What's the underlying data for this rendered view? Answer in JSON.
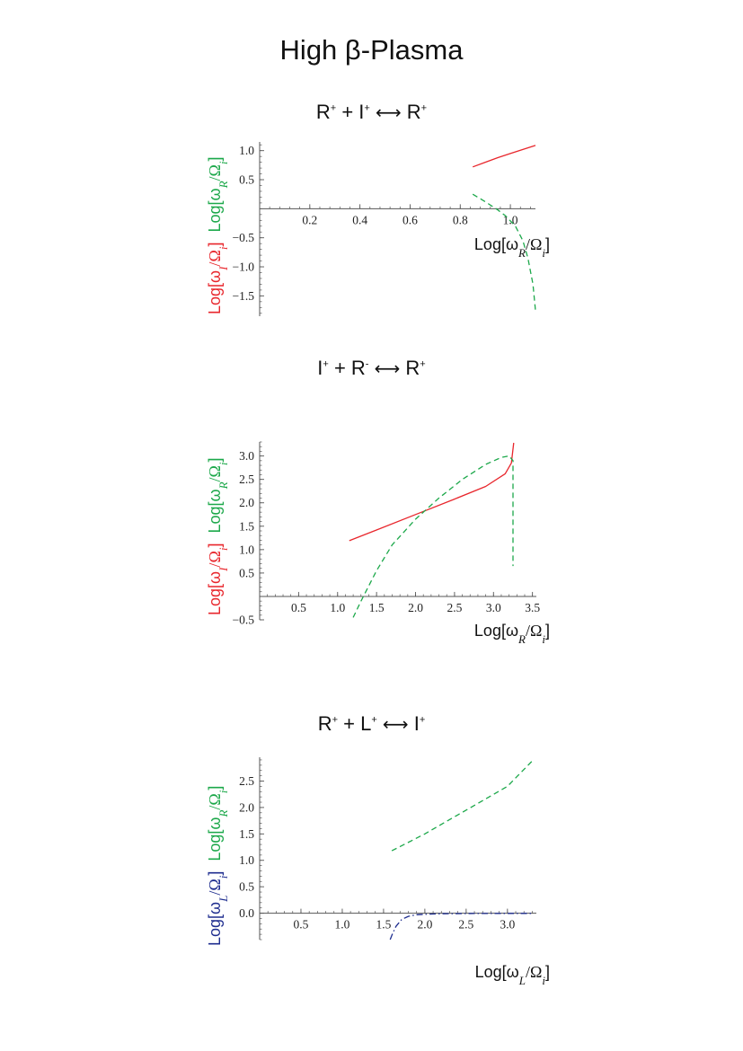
{
  "title": "High β-Plasma",
  "colors": {
    "red": "#e8262c",
    "green": "#1ca84a",
    "blue": "#1e2d8f",
    "axis": "#555555"
  },
  "panels": [
    {
      "pre": "R",
      "pre_sup": "+",
      "plus": " + ",
      "mid": "I",
      "mid_sup": "+",
      "arrow": "⟷",
      "post": "R",
      "post_sup": "+",
      "ylabel_a": "Log[ω",
      "ylabel_a_sub": "I",
      "ylabel_a_mid": "/Ω",
      "ylabel_a_sub2": "i",
      "ylabel_a_end": "]",
      "ylabel_b": "Log[ω",
      "ylabel_b_sub": "R",
      "ylabel_b_mid": "/Ω",
      "ylabel_b_sub2": "i",
      "ylabel_b_end": "]",
      "xlabel": "Log[ω",
      "xlabel_sub": "R",
      "xlabel_mid": "/Ω",
      "xlabel_sub2": "i",
      "xlabel_end": "]"
    },
    {
      "pre": "I",
      "pre_sup": "+",
      "plus": " + ",
      "mid": "R",
      "mid_sup": "-",
      "arrow": "⟷",
      "post": "R",
      "post_sup": "+",
      "ylabel_a": "Log[ω",
      "ylabel_a_sub": "I",
      "ylabel_a_mid": "/Ω",
      "ylabel_a_sub2": "i",
      "ylabel_a_end": "]",
      "ylabel_b": "Log[ω",
      "ylabel_b_sub": "R",
      "ylabel_b_mid": "/Ω",
      "ylabel_b_sub2": "i",
      "ylabel_b_end": "]",
      "xlabel": "Log[ω",
      "xlabel_sub": "R",
      "xlabel_mid": "/Ω",
      "xlabel_sub2": "i",
      "xlabel_end": "]"
    },
    {
      "pre": "R",
      "pre_sup": "+",
      "plus": " + ",
      "mid": "L",
      "mid_sup": "+",
      "arrow": "⟷",
      "post": "I",
      "post_sup": "+",
      "ylabel_a": "Log[ω",
      "ylabel_a_sub": "L",
      "ylabel_a_mid": "/Ω",
      "ylabel_a_sub2": "i",
      "ylabel_a_end": "]",
      "ylabel_b": "Log[ω",
      "ylabel_b_sub": "R",
      "ylabel_b_mid": "/Ω",
      "ylabel_b_sub2": "i",
      "ylabel_b_end": "]",
      "xlabel": "Log[ω",
      "xlabel_sub": "L",
      "xlabel_mid": "/Ω",
      "xlabel_sub2": "i",
      "xlabel_end": "]"
    }
  ],
  "chart_data": [
    {
      "type": "line",
      "title": "R+ + I+ ⟷ R+",
      "xlabel": "Log[ωR/Ωi]",
      "ylabel": "Log[ωI/Ωi] Log[ωR/Ωi]",
      "xlim": [
        0,
        1.1
      ],
      "ylim": [
        -1.85,
        1.15
      ],
      "x_ticks": [
        0.2,
        0.4,
        0.6,
        0.8,
        1.0
      ],
      "x_tick_labels": [
        "0.2",
        "0.4",
        "0.6",
        "0.8",
        "1.0"
      ],
      "y_ticks": [
        -1.5,
        -1.0,
        -0.5,
        0.5,
        1.0
      ],
      "y_tick_labels": [
        "−1.5",
        "−1.0",
        "−0.5",
        "0.5",
        "1.0"
      ],
      "series": [
        {
          "style": "solid",
          "color": "red",
          "x": [
            0.85,
            0.9,
            0.95,
            1.0,
            1.05,
            1.1
          ],
          "y": [
            0.72,
            0.8,
            0.88,
            0.95,
            1.02,
            1.09
          ]
        },
        {
          "style": "dashed",
          "color": "green",
          "x": [
            0.85,
            0.9,
            0.95,
            0.98,
            1.02,
            1.05,
            1.07,
            1.09,
            1.1
          ],
          "y": [
            0.25,
            0.12,
            -0.02,
            -0.12,
            -0.3,
            -0.55,
            -0.85,
            -1.3,
            -1.75
          ]
        }
      ]
    },
    {
      "type": "line",
      "title": "I+ + R- ⟷ R+",
      "xlabel": "Log[ωR/Ωi]",
      "ylabel": "Log[ωI/Ωi] Log[ωR/Ωi]",
      "xlim": [
        0,
        3.55
      ],
      "ylim": [
        -0.5,
        3.3
      ],
      "x_ticks": [
        0.5,
        1.0,
        1.5,
        2.0,
        2.5,
        3.0,
        3.5
      ],
      "x_tick_labels": [
        "0.5",
        "1.0",
        "1.5",
        "2.0",
        "2.5",
        "3.0",
        "3.5"
      ],
      "y_ticks": [
        -0.5,
        0.5,
        1.0,
        1.5,
        2.0,
        2.5,
        3.0
      ],
      "y_tick_labels": [
        "−0.5",
        "0.5",
        "1.0",
        "1.5",
        "2.0",
        "2.5",
        "3.0"
      ],
      "series": [
        {
          "style": "solid",
          "color": "red",
          "x": [
            1.15,
            1.5,
            2.0,
            2.5,
            2.9,
            3.15,
            3.23,
            3.26
          ],
          "y": [
            1.19,
            1.42,
            1.75,
            2.08,
            2.35,
            2.62,
            2.85,
            3.28
          ]
        },
        {
          "style": "dashed",
          "color": "green",
          "x": [
            1.2,
            1.3,
            1.5,
            1.7,
            2.0,
            2.3,
            2.6,
            2.9,
            3.1,
            3.2,
            3.25,
            3.25
          ],
          "y": [
            -0.45,
            -0.1,
            0.55,
            1.1,
            1.65,
            2.1,
            2.5,
            2.82,
            2.97,
            3.0,
            2.9,
            0.65
          ]
        }
      ]
    },
    {
      "type": "line",
      "title": "R+ + L+ ⟷ I+",
      "xlabel": "Log[ωL/Ωi]",
      "ylabel": "Log[ωL/Ωi] Log[ωR/Ωi]",
      "xlim": [
        0,
        3.35
      ],
      "ylim": [
        -0.5,
        2.95
      ],
      "x_ticks": [
        0.5,
        1.0,
        1.5,
        2.0,
        2.5,
        3.0
      ],
      "x_tick_labels": [
        "0.5",
        "1.0",
        "1.5",
        "2.0",
        "2.5",
        "3.0"
      ],
      "y_ticks": [
        0.0,
        0.5,
        1.0,
        1.5,
        2.0,
        2.5
      ],
      "y_tick_labels": [
        "0.0",
        "0.5",
        "1.0",
        "1.5",
        "2.0",
        "2.5"
      ],
      "series": [
        {
          "style": "dashed",
          "color": "green",
          "x": [
            1.6,
            2.0,
            2.5,
            3.0,
            3.3
          ],
          "y": [
            1.18,
            1.5,
            1.95,
            2.4,
            2.88
          ]
        },
        {
          "style": "dashdot",
          "color": "blue",
          "x": [
            1.58,
            1.6,
            1.65,
            1.72,
            1.8,
            1.9,
            2.0,
            2.2,
            2.6,
            3.0,
            3.3
          ],
          "y": [
            -0.5,
            -0.42,
            -0.25,
            -0.12,
            -0.06,
            -0.03,
            -0.02,
            -0.01,
            -0.005,
            -0.003,
            -0.003
          ]
        }
      ]
    }
  ]
}
